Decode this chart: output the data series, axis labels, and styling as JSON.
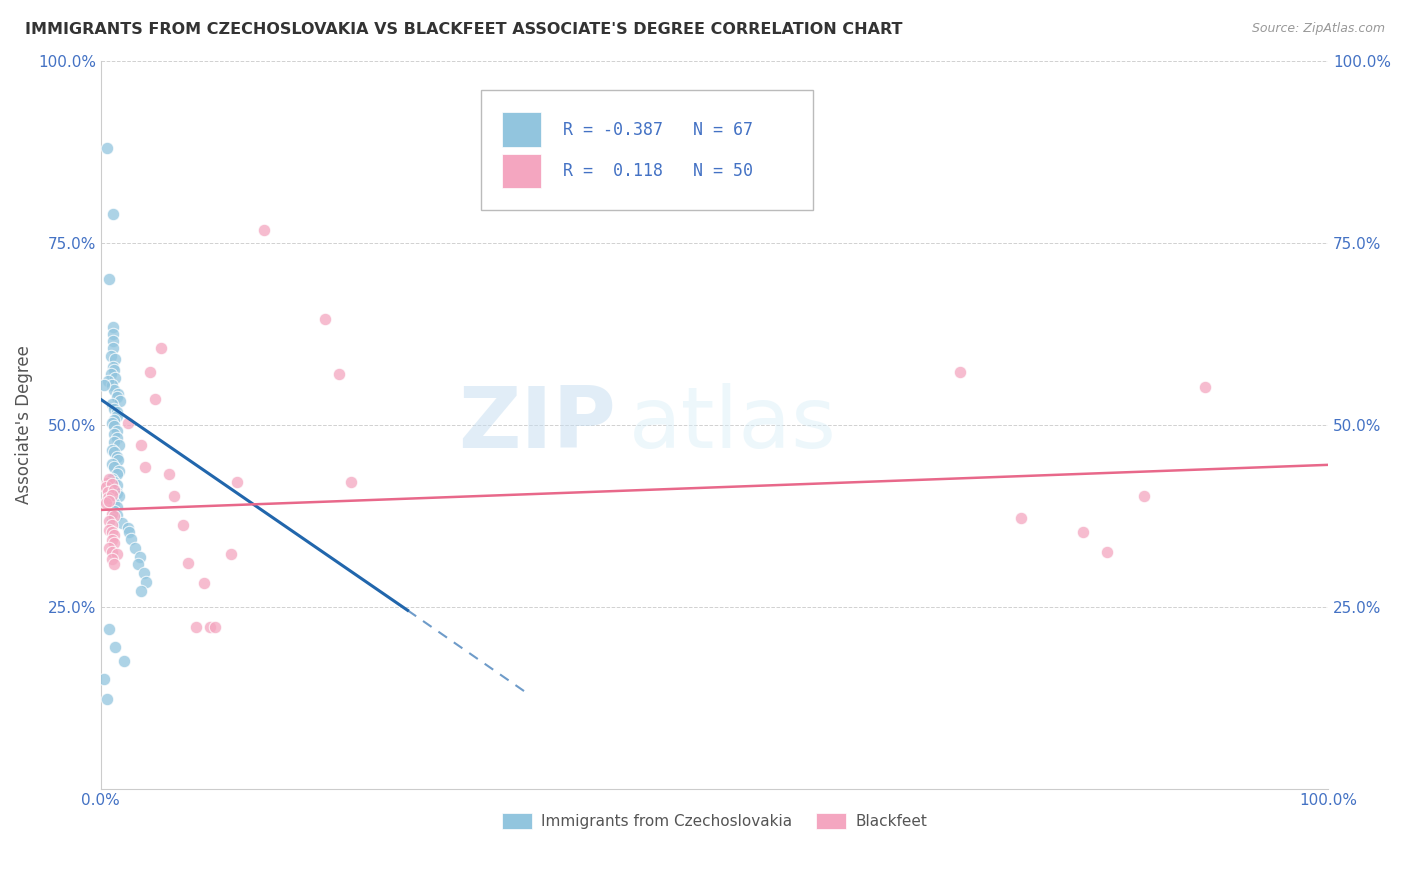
{
  "title": "IMMIGRANTS FROM CZECHOSLOVAKIA VS BLACKFEET ASSOCIATE'S DEGREE CORRELATION CHART",
  "source": "Source: ZipAtlas.com",
  "ylabel": "Associate's Degree",
  "legend_r_blue": "-0.387",
  "legend_n_blue": "67",
  "legend_r_pink": "0.118",
  "legend_n_pink": "50",
  "blue_color": "#92c5de",
  "pink_color": "#f4a6c0",
  "line_blue": "#2166ac",
  "line_pink": "#e8688a",
  "watermark_zip": "ZIP",
  "watermark_atlas": "atlas",
  "blue_scatter": [
    [
      0.005,
      0.88
    ],
    [
      0.01,
      0.79
    ],
    [
      0.007,
      0.7
    ],
    [
      0.01,
      0.635
    ],
    [
      0.01,
      0.625
    ],
    [
      0.01,
      0.615
    ],
    [
      0.01,
      0.605
    ],
    [
      0.008,
      0.595
    ],
    [
      0.012,
      0.59
    ],
    [
      0.01,
      0.58
    ],
    [
      0.011,
      0.575
    ],
    [
      0.008,
      0.57
    ],
    [
      0.012,
      0.565
    ],
    [
      0.006,
      0.56
    ],
    [
      0.009,
      0.555
    ],
    [
      0.011,
      0.548
    ],
    [
      0.014,
      0.543
    ],
    [
      0.013,
      0.538
    ],
    [
      0.016,
      0.533
    ],
    [
      0.009,
      0.528
    ],
    [
      0.011,
      0.522
    ],
    [
      0.013,
      0.518
    ],
    [
      0.013,
      0.512
    ],
    [
      0.011,
      0.507
    ],
    [
      0.009,
      0.502
    ],
    [
      0.011,
      0.498
    ],
    [
      0.013,
      0.492
    ],
    [
      0.011,
      0.487
    ],
    [
      0.013,
      0.482
    ],
    [
      0.011,
      0.477
    ],
    [
      0.015,
      0.472
    ],
    [
      0.009,
      0.466
    ],
    [
      0.011,
      0.462
    ],
    [
      0.013,
      0.456
    ],
    [
      0.014,
      0.452
    ],
    [
      0.009,
      0.446
    ],
    [
      0.011,
      0.442
    ],
    [
      0.015,
      0.437
    ],
    [
      0.013,
      0.432
    ],
    [
      0.009,
      0.426
    ],
    [
      0.011,
      0.422
    ],
    [
      0.013,
      0.417
    ],
    [
      0.011,
      0.412
    ],
    [
      0.013,
      0.406
    ],
    [
      0.015,
      0.402
    ],
    [
      0.009,
      0.396
    ],
    [
      0.011,
      0.392
    ],
    [
      0.013,
      0.387
    ],
    [
      0.011,
      0.381
    ],
    [
      0.013,
      0.376
    ],
    [
      0.009,
      0.37
    ],
    [
      0.017,
      0.365
    ],
    [
      0.022,
      0.358
    ],
    [
      0.023,
      0.352
    ],
    [
      0.025,
      0.343
    ],
    [
      0.028,
      0.33
    ],
    [
      0.032,
      0.318
    ],
    [
      0.03,
      0.308
    ],
    [
      0.035,
      0.296
    ],
    [
      0.037,
      0.284
    ],
    [
      0.033,
      0.272
    ],
    [
      0.007,
      0.22
    ],
    [
      0.012,
      0.195
    ],
    [
      0.019,
      0.175
    ],
    [
      0.003,
      0.15
    ],
    [
      0.005,
      0.123
    ],
    [
      0.003,
      0.555
    ]
  ],
  "pink_scatter": [
    [
      0.005,
      0.42
    ],
    [
      0.007,
      0.425
    ],
    [
      0.004,
      0.415
    ],
    [
      0.009,
      0.418
    ],
    [
      0.006,
      0.408
    ],
    [
      0.011,
      0.41
    ],
    [
      0.006,
      0.4
    ],
    [
      0.009,
      0.403
    ],
    [
      0.004,
      0.393
    ],
    [
      0.007,
      0.395
    ],
    [
      0.009,
      0.378
    ],
    [
      0.011,
      0.375
    ],
    [
      0.007,
      0.368
    ],
    [
      0.009,
      0.362
    ],
    [
      0.007,
      0.355
    ],
    [
      0.009,
      0.352
    ],
    [
      0.011,
      0.348
    ],
    [
      0.009,
      0.342
    ],
    [
      0.011,
      0.338
    ],
    [
      0.007,
      0.33
    ],
    [
      0.009,
      0.325
    ],
    [
      0.013,
      0.322
    ],
    [
      0.009,
      0.315
    ],
    [
      0.011,
      0.308
    ],
    [
      0.022,
      0.502
    ],
    [
      0.033,
      0.472
    ],
    [
      0.036,
      0.442
    ],
    [
      0.04,
      0.572
    ],
    [
      0.044,
      0.535
    ],
    [
      0.049,
      0.605
    ],
    [
      0.056,
      0.432
    ],
    [
      0.06,
      0.402
    ],
    [
      0.067,
      0.362
    ],
    [
      0.071,
      0.31
    ],
    [
      0.078,
      0.222
    ],
    [
      0.084,
      0.282
    ],
    [
      0.089,
      0.222
    ],
    [
      0.093,
      0.222
    ],
    [
      0.106,
      0.322
    ],
    [
      0.111,
      0.422
    ],
    [
      0.133,
      0.768
    ],
    [
      0.183,
      0.645
    ],
    [
      0.194,
      0.57
    ],
    [
      0.204,
      0.422
    ],
    [
      0.7,
      0.572
    ],
    [
      0.75,
      0.372
    ],
    [
      0.8,
      0.352
    ],
    [
      0.82,
      0.325
    ],
    [
      0.85,
      0.402
    ],
    [
      0.9,
      0.552
    ]
  ],
  "blue_line": [
    [
      0.0,
      0.535
    ],
    [
      0.25,
      0.245
    ]
  ],
  "blue_line_dash": [
    [
      0.25,
      0.245
    ],
    [
      0.35,
      0.128
    ]
  ],
  "pink_line": [
    [
      0.0,
      0.383
    ],
    [
      1.0,
      0.445
    ]
  ],
  "xlim": [
    0.0,
    1.0
  ],
  "ylim": [
    0.0,
    1.0
  ],
  "xtick_positions": [
    0.0,
    0.25,
    0.5,
    0.75,
    1.0
  ],
  "xtick_labels": [
    "0.0%",
    "",
    "",
    "",
    "100.0%"
  ],
  "ytick_positions": [
    0.0,
    0.25,
    0.5,
    0.75,
    1.0
  ],
  "ytick_labels_left": [
    "",
    "25.0%",
    "50.0%",
    "75.0%",
    "100.0%"
  ],
  "ytick_labels_right": [
    "",
    "25.0%",
    "50.0%",
    "75.0%",
    "100.0%"
  ],
  "tick_color": "#4472c4",
  "grid_color": "#cccccc",
  "title_fontsize": 11.5,
  "axis_fontsize": 11,
  "legend_fontsize": 12
}
